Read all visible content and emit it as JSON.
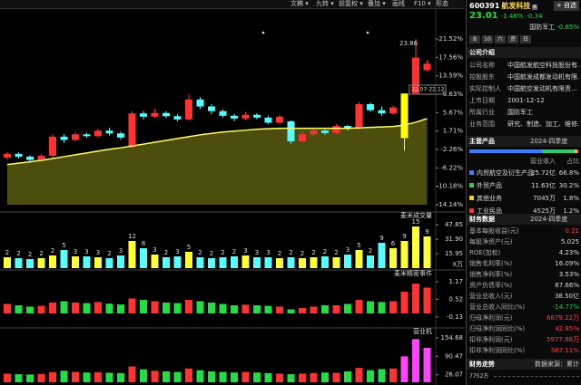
{
  "toolbar": [
    "文稿 ▾",
    "九转 ▾",
    "前复权 ▾",
    "叠加 ▾",
    "画线",
    "F10 ▾",
    "形态"
  ],
  "main_chart": {
    "type": "candlestick",
    "ylim": [
      -14.14,
      21.52
    ],
    "yticks": [
      {
        "value": 21.52,
        "label": "21.52%"
      },
      {
        "value": 17.56,
        "label": "17.56%"
      },
      {
        "value": 13.59,
        "label": "13.59%"
      },
      {
        "value": 9.63,
        "label": "9.63%"
      },
      {
        "value": 5.67,
        "label": "5.67%"
      },
      {
        "value": 1.71,
        "label": "1.71%"
      },
      {
        "value": -2.26,
        "label": "-2.26%"
      },
      {
        "value": -6.22,
        "label": "-6.22%"
      },
      {
        "value": -10.18,
        "label": "-10.18%"
      },
      {
        "value": -14.14,
        "label": "-14.14%"
      }
    ],
    "candles": [
      [
        -4,
        -3.2,
        -2.8,
        -4.5
      ],
      [
        -3.2,
        -3.8,
        -2.9,
        -4.2
      ],
      [
        -3.8,
        -4.5,
        -3.5,
        -5
      ],
      [
        -4.5,
        -3.6,
        -3.2,
        -4.8
      ],
      [
        -3.6,
        0.5,
        1,
        -4
      ],
      [
        0.5,
        -0.2,
        1,
        -0.8
      ],
      [
        -0.2,
        1,
        1.5,
        -0.5
      ],
      [
        1,
        0.6,
        1.4,
        0.2
      ],
      [
        0.6,
        1.8,
        2.2,
        0.4
      ],
      [
        1.8,
        1.2,
        2.4,
        0.8
      ],
      [
        1.2,
        0.3,
        1.6,
        -0.2
      ],
      [
        -1.8,
        5.5,
        6,
        -2
      ],
      [
        5.5,
        4.8,
        6,
        4.2
      ],
      [
        4.8,
        5.6,
        6.5,
        4.5
      ],
      [
        5.6,
        4.9,
        6,
        4.5
      ],
      [
        4.9,
        4.2,
        5.3,
        3.8
      ],
      [
        4.2,
        8.5,
        9.6,
        4
      ],
      [
        8.5,
        7,
        9,
        6.5
      ],
      [
        7,
        6,
        7.5,
        5.3
      ],
      [
        6,
        5,
        6.4,
        4.6
      ],
      [
        5,
        4.4,
        5.4,
        3.8
      ],
      [
        4.4,
        5.2,
        5.8,
        4
      ],
      [
        5.2,
        4.6,
        5.6,
        4.2
      ],
      [
        4.6,
        3.5,
        5,
        3.2
      ],
      [
        3.5,
        4.8,
        5.2,
        3.3
      ],
      [
        3.8,
        -0.5,
        4,
        -1
      ],
      [
        -0.5,
        1,
        1.6,
        -0.8
      ],
      [
        1,
        1.8,
        2.2,
        0.5
      ],
      [
        1.8,
        1.3,
        2,
        0.9
      ],
      [
        1.3,
        2.8,
        3.2,
        1
      ],
      [
        2.8,
        2.2,
        3,
        1.8
      ],
      [
        2.2,
        7.5,
        8,
        2
      ],
      [
        7.5,
        6.2,
        7.8,
        5.8
      ],
      [
        6.2,
        5.5,
        7,
        5
      ],
      [
        5.5,
        6.8,
        7.2,
        5.2
      ],
      [
        0.2,
        9.8,
        9.8,
        -2.5
      ],
      [
        9.8,
        17.5,
        21.5,
        9.8
      ],
      [
        14.8,
        16.2,
        17,
        14.5
      ]
    ],
    "up_color": "#ff3232",
    "down_color": "#54ffff",
    "limit_color": "#ffff00",
    "limit_index": 35,
    "ma": [
      -5.5,
      -5.2,
      -4.9,
      -4.6,
      -4.2,
      -3.8,
      -3.4,
      -3,
      -2.6,
      -2.2,
      -1.9,
      -1.5,
      -1.1,
      -0.7,
      -0.3,
      0.1,
      0.5,
      0.9,
      1.2,
      1.5,
      1.7,
      1.9,
      2.1,
      2.2,
      2.3,
      2.3,
      2.3,
      2.3,
      2.3,
      2.3,
      2.3,
      2.4,
      2.5,
      2.6,
      2.7,
      3,
      3.6,
      4.4
    ],
    "ma_color": "#ffff66",
    "annotations": [
      "23.86",
      "22.07-22.12"
    ]
  },
  "volume_panel": {
    "type": "bar",
    "title": "麦米成交量",
    "unit": "X万",
    "ylim": [
      0,
      52
    ],
    "yticks": [
      47.85,
      {
        "value": 31.9,
        "label": "31.90"
      },
      15.95
    ],
    "values": [
      12,
      11,
      10,
      11,
      14,
      20,
      13,
      13,
      12,
      11,
      14,
      30,
      22,
      15,
      12,
      13,
      18,
      12,
      11,
      12,
      13,
      14,
      12,
      12,
      11,
      12,
      11,
      12,
      13,
      12,
      15,
      20,
      14,
      28,
      22,
      30,
      46,
      35
    ],
    "counts": [
      2,
      2,
      2,
      2,
      2,
      5,
      3,
      3,
      3,
      2,
      3,
      12,
      8,
      3,
      2,
      3,
      5,
      2,
      2,
      2,
      2,
      3,
      3,
      3,
      2,
      2,
      2,
      2,
      2,
      2,
      3,
      5,
      2,
      9,
      6,
      9,
      15,
      9
    ],
    "color": "#ffff33"
  },
  "event_panel": {
    "type": "bar",
    "title": "麦米精密事件",
    "ylim": [
      -0.4,
      1.4
    ],
    "yticks": [
      1.17,
      0.52,
      -0.13
    ],
    "values": [
      0.35,
      0.3,
      0.25,
      0.28,
      0.4,
      0.45,
      0.4,
      0.38,
      0.42,
      0.36,
      0.33,
      0.55,
      0.5,
      0.45,
      0.4,
      0.38,
      0.5,
      0.45,
      0.4,
      0.35,
      0.3,
      0.32,
      0.3,
      0.28,
      0.25,
      0.15,
      0.2,
      0.25,
      0.3,
      0.3,
      0.35,
      0.5,
      0.45,
      0.42,
      0.45,
      0.8,
      1.1,
      0.95
    ]
  },
  "business_panel": {
    "type": "bar",
    "title": "营业机",
    "ylim": [
      0,
      170
    ],
    "yticks": [
      154.68,
      90.47,
      26.07
    ],
    "values": [
      30,
      28,
      27,
      29,
      35,
      40,
      36,
      34,
      35,
      33,
      32,
      55,
      45,
      40,
      38,
      36,
      48,
      42,
      38,
      36,
      34,
      36,
      34,
      32,
      30,
      28,
      30,
      32,
      34,
      33,
      38,
      50,
      42,
      46,
      48,
      90,
      150,
      120
    ]
  },
  "stock": {
    "code": "600391",
    "name": "航发科技",
    "badge": "R",
    "add": "+ 自选",
    "price": "23.01",
    "change_pct": "-1.46%",
    "change": "-0.34",
    "sector": "国防军工",
    "sector_pct": "-0.85%",
    "tabs": [
      "B",
      "10",
      "六",
      "资",
      "日"
    ]
  },
  "company": {
    "title": "公司介绍",
    "rows": [
      [
        "公司名称",
        "中国航发航空科技股份有..."
      ],
      [
        "控股股东",
        "中国航发成都发动机有限..."
      ],
      [
        "实际控制人",
        "中国航空发动机有限责..."
      ],
      [
        "上市日期",
        "2001-12-12"
      ],
      [
        "所属行业",
        "国防军工"
      ],
      [
        "业务范围",
        "研究、制造、加工、维修..."
      ]
    ]
  },
  "products": {
    "title": "主营产品",
    "period": "2024-四季度",
    "headers": [
      "营业收入",
      "占比"
    ],
    "rows": [
      {
        "name": "内贸航空及衍生产品",
        "revenue": "25.72亿",
        "share": 66.8,
        "share_label": "66.8%",
        "color": "#3d7bff"
      },
      {
        "name": "外贸产品",
        "revenue": "11.63亿",
        "share": 30.2,
        "share_label": "30.2%",
        "color": "#2ecc71"
      },
      {
        "name": "其他业务",
        "revenue": "7045万",
        "share": 1.8,
        "share_label": "1.8%",
        "color": "#ffcc00"
      },
      {
        "name": "工业民品",
        "revenue": "4525万",
        "share": 1.2,
        "share_label": "1.2%",
        "color": "#ff3232"
      }
    ]
  },
  "finance": {
    "title": "财务数据",
    "period": "2024-四季度",
    "rows": [
      {
        "label": "基本每股收益(元)",
        "value": "0.21",
        "color": "#ff4040"
      },
      {
        "label": "每股净资产(元)",
        "value": "5.025",
        "color": "#dddddd"
      },
      {
        "label": "ROE(加权)",
        "value": "4.23%",
        "color": "#dddddd"
      },
      {
        "label": "销售毛利率(%)",
        "value": "16.09%",
        "color": "#dddddd"
      },
      {
        "label": "销售净利率(%)",
        "value": "3.53%",
        "color": "#dddddd"
      },
      {
        "label": "资产负债率(%)",
        "value": "67.66%",
        "color": "#dddddd"
      },
      {
        "label": "营业总收入(元)",
        "value": "38.50亿",
        "color": "#dddddd"
      },
      {
        "label": "营业总收入同比(%)",
        "value": "-14.77%",
        "color": "#22cc44"
      },
      {
        "label": "归母净利润(元)",
        "value": "6879.22万",
        "color": "#ff4040"
      },
      {
        "label": "归母净利润同比(%)",
        "value": "42.85%",
        "color": "#ff4040"
      },
      {
        "label": "扣非净利润(元)",
        "value": "5977.88万",
        "color": "#ff4040"
      },
      {
        "label": "扣非净利润同比(%)",
        "value": "567.11%",
        "color": "#ff4040"
      }
    ]
  },
  "trend": {
    "title": "财务走势",
    "source": "数据来源：累计",
    "axis": "7752万"
  }
}
